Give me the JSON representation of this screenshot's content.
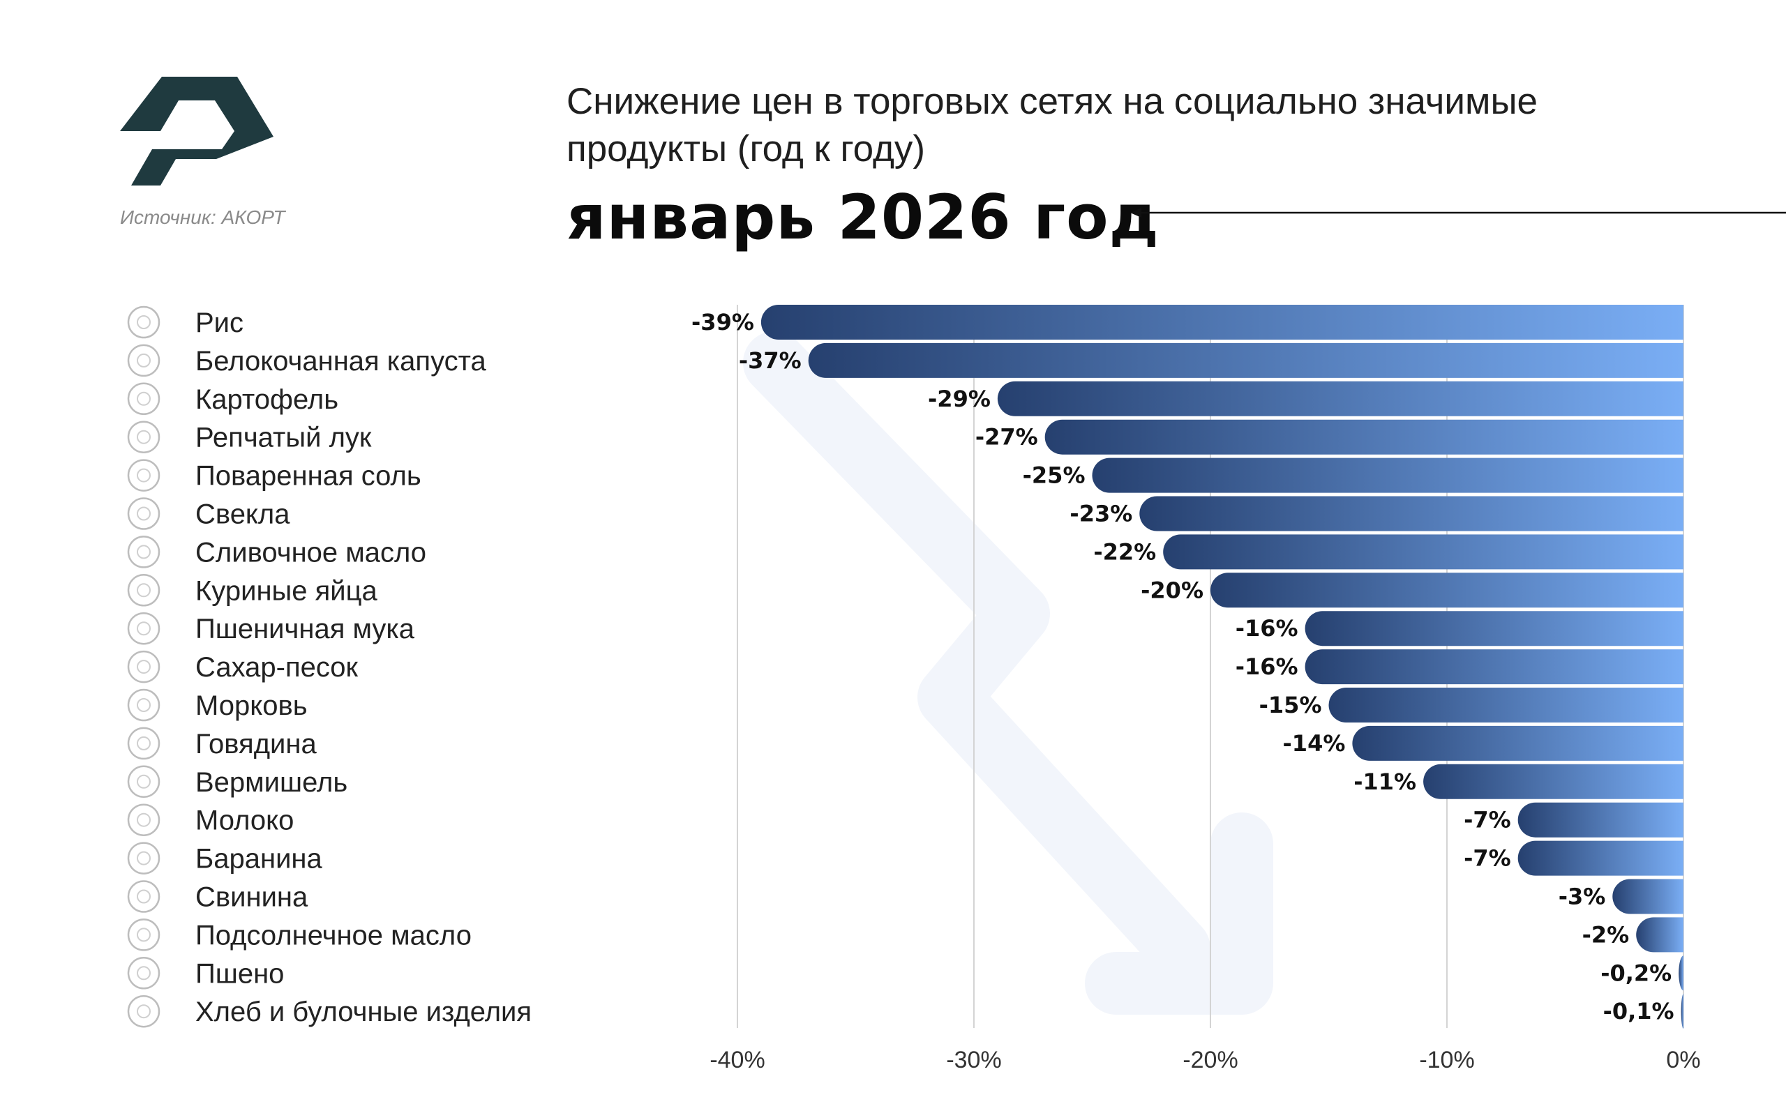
{
  "header": {
    "subtitle": "Снижение цен в торговых сетях на социально значимые продукты (год к году)",
    "title": "январь 2026 год",
    "source": "Источник: АКОРТ"
  },
  "colors": {
    "logo": "#1f3a3f",
    "bar_start": "#26406f",
    "bar_end": "#7aaef5",
    "grid": "#d4d4d4",
    "watermark_arrow": "#f2f5fb"
  },
  "chart_data": {
    "type": "bar",
    "orientation": "horizontal",
    "categories": [
      "Рис",
      "Белокочанная капуста",
      "Картофель",
      "Репчатый лук",
      "Поваренная соль",
      "Свекла",
      "Сливочное масло",
      "Куриные яйца",
      "Пшеничная мука",
      "Сахар-песок",
      "Морковь",
      "Говядина",
      "Вермишель",
      "Молоко",
      "Баранина",
      "Свинина",
      "Подсолнечное масло",
      "Пшено",
      "Хлеб и булочные изделия"
    ],
    "icons": [
      "rice-bowl-icon",
      "cabbage-icon",
      "potato-icon",
      "onion-icon",
      "salt-icon",
      "beet-icon",
      "butter-icon",
      "eggs-icon",
      "flour-sack-icon",
      "sugar-spoon-icon",
      "carrot-icon",
      "beef-icon",
      "noodles-icon",
      "milk-bottle-icon",
      "sheep-icon",
      "pork-icon",
      "oil-bottle-icon",
      "millet-icon",
      "bread-icon"
    ],
    "values": [
      -39,
      -37,
      -29,
      -27,
      -25,
      -23,
      -22,
      -20,
      -16,
      -16,
      -15,
      -14,
      -11,
      -7,
      -7,
      -3,
      -2,
      -0.2,
      -0.1
    ],
    "value_labels": [
      "-39%",
      "-37%",
      "-29%",
      "-27%",
      "-25%",
      "-23%",
      "-22%",
      "-20%",
      "-16%",
      "-16%",
      "-15%",
      "-14%",
      "-11%",
      "-7%",
      "-7%",
      "-3%",
      "-2%",
      "-0,2%",
      "-0,1%"
    ],
    "xlim": [
      -40,
      0
    ],
    "xticks": [
      -40,
      -30,
      -20,
      -10,
      0
    ],
    "xtick_labels": [
      "-40%",
      "-30%",
      "-20%",
      "-10%",
      "0%"
    ],
    "grid": true,
    "xlabel": "",
    "ylabel": ""
  }
}
